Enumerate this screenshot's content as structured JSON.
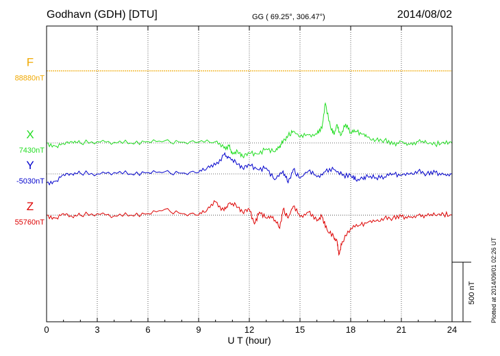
{
  "header": {
    "station": "Godhavn (GDH)  [DTU]",
    "coords": "GG ( 69.25°, 306.47°)",
    "date": "2014/08/02"
  },
  "footer": {
    "plotted": "Plotted at 2014/09/01 02:26 UT",
    "scale_label": "500 nT"
  },
  "chart_data": {
    "type": "line",
    "title": "Godhavn (GDH)  [DTU]",
    "xlabel": "U T (hour)",
    "ylabel": "",
    "xlim": [
      0,
      24
    ],
    "xticks": [
      0,
      3,
      6,
      9,
      12,
      15,
      18,
      21,
      24
    ],
    "xtick_labels": [
      "0",
      "3",
      "6",
      "9",
      "12",
      "15",
      "18",
      "21",
      "24"
    ],
    "ylim": [
      -1005,
      1005
    ],
    "scale_bar_nT": 500,
    "grid": true,
    "colors": {
      "F": "#f0a800",
      "X": "#22dd22",
      "Y": "#0000cc",
      "Z": "#dd0000"
    },
    "series": [
      {
        "name": "F",
        "baseline_label": "88880nT",
        "offset": 700,
        "x": [
          0,
          24
        ],
        "values": [
          0,
          0
        ]
      },
      {
        "name": "X",
        "baseline_label": "7430nT",
        "offset": 210,
        "x": [
          0,
          0.5,
          1,
          1.5,
          2,
          3,
          4,
          5,
          6,
          7,
          8,
          9,
          10,
          10.5,
          10.8,
          11,
          11.3,
          11.6,
          12,
          12.5,
          13,
          13.5,
          13.8,
          14,
          14.3,
          14.6,
          15,
          15.5,
          16,
          16.3,
          16.5,
          16.8,
          17,
          17.2,
          17.4,
          17.7,
          18,
          18.3,
          18.7,
          19,
          19.5,
          20,
          20.5,
          21,
          21.5,
          22,
          22.5,
          23,
          23.5,
          24
        ],
        "values": [
          0,
          -20,
          -5,
          10,
          0,
          10,
          5,
          0,
          10,
          15,
          5,
          5,
          10,
          -35,
          -20,
          -75,
          -55,
          -90,
          -70,
          -75,
          -40,
          -60,
          -20,
          10,
          50,
          80,
          40,
          55,
          60,
          100,
          270,
          110,
          60,
          125,
          50,
          130,
          70,
          80,
          60,
          40,
          20,
          20,
          -10,
          10,
          -10,
          10,
          0,
          -10,
          5,
          0
        ]
      },
      {
        "name": "Y",
        "baseline_label": "-5030nT",
        "offset": 0,
        "x": [
          0,
          0.5,
          1,
          1.5,
          2,
          3,
          4,
          5,
          6,
          7,
          8,
          9,
          9.5,
          10,
          10.5,
          10.8,
          11.2,
          11.6,
          12,
          12.5,
          13,
          13.5,
          14,
          14.3,
          14.6,
          15,
          15.5,
          16,
          16.5,
          17,
          17.5,
          18,
          18.3,
          18.7,
          19,
          19.5,
          20,
          20.5,
          21,
          21.5,
          22,
          22.5,
          23,
          23.5,
          24
        ],
        "values": [
          -60,
          -50,
          -5,
          0,
          5,
          0,
          10,
          0,
          10,
          15,
          5,
          10,
          40,
          60,
          130,
          110,
          80,
          40,
          60,
          30,
          40,
          -40,
          20,
          -60,
          30,
          -30,
          20,
          -20,
          15,
          30,
          -10,
          -10,
          -40,
          -30,
          -15,
          -25,
          -20,
          0,
          -10,
          0,
          20,
          0,
          10,
          -5,
          0
        ]
      },
      {
        "name": "Z",
        "baseline_label": "55760nT",
        "offset": -280,
        "x": [
          0,
          0.5,
          1,
          1.5,
          2,
          3,
          4,
          5,
          6,
          7,
          8,
          9,
          9.5,
          10,
          10.5,
          10.8,
          11.2,
          11.6,
          12,
          12.3,
          12.6,
          13,
          13.4,
          13.8,
          14,
          14.3,
          14.6,
          15,
          15.5,
          16,
          16.3,
          16.6,
          17,
          17.2,
          17.3,
          17.5,
          18,
          18.5,
          19,
          19.5,
          20,
          20.5,
          21,
          21.5,
          22,
          22.5,
          23,
          23.5,
          24
        ],
        "values": [
          0,
          -20,
          10,
          -10,
          0,
          10,
          -5,
          0,
          10,
          40,
          10,
          0,
          35,
          90,
          30,
          80,
          70,
          20,
          40,
          -60,
          20,
          -20,
          -10,
          -90,
          40,
          -20,
          60,
          -10,
          20,
          -40,
          -10,
          -100,
          -150,
          -180,
          -270,
          -180,
          -90,
          -70,
          -50,
          -40,
          -20,
          -20,
          -10,
          -15,
          0,
          -5,
          0,
          5,
          0
        ]
      }
    ]
  }
}
